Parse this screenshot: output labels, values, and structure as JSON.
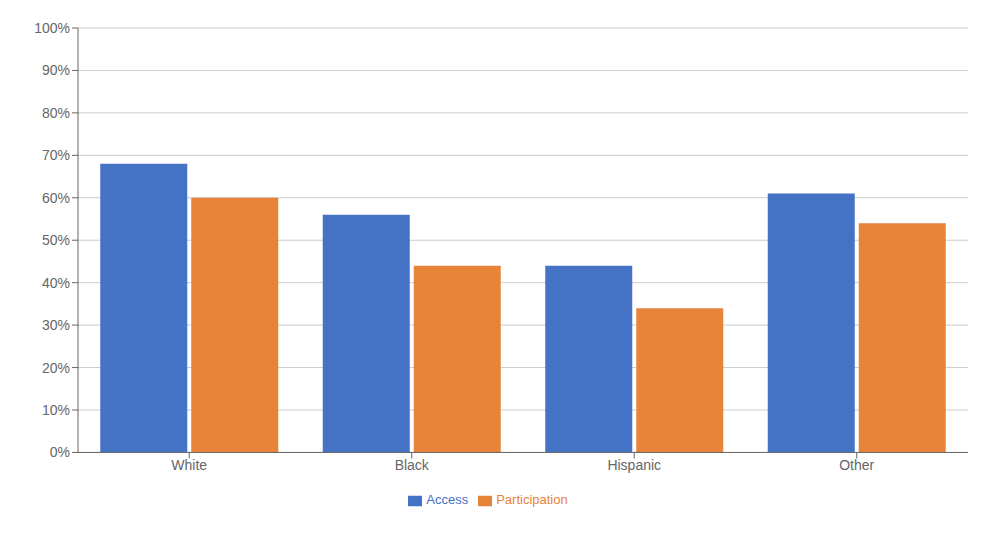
{
  "chart_data": {
    "type": "bar",
    "categories": [
      "White",
      "Black",
      "Hispanic",
      "Other"
    ],
    "series": [
      {
        "name": "Access",
        "color": "#4472C4",
        "values": [
          0.68,
          0.56,
          0.44,
          0.61
        ]
      },
      {
        "name": "Participation",
        "color": "#E8833A",
        "values": [
          0.6,
          0.44,
          0.34,
          0.54
        ]
      }
    ],
    "ylim": [
      0,
      1.0
    ],
    "yticks": [
      {
        "value": 0.0,
        "label": "0%"
      },
      {
        "value": 0.1,
        "label": "10%"
      },
      {
        "value": 0.2,
        "label": "20%"
      },
      {
        "value": 0.3,
        "label": "30%"
      },
      {
        "value": 0.4,
        "label": "40%"
      },
      {
        "value": 0.5,
        "label": "50%"
      },
      {
        "value": 0.6,
        "label": "60%"
      },
      {
        "value": 0.7,
        "label": "70%"
      },
      {
        "value": 0.8,
        "label": "80%"
      },
      {
        "value": 0.9,
        "label": "90%"
      },
      {
        "value": 1.0,
        "label": "100%"
      }
    ],
    "grid": true,
    "legend": "bottom"
  }
}
